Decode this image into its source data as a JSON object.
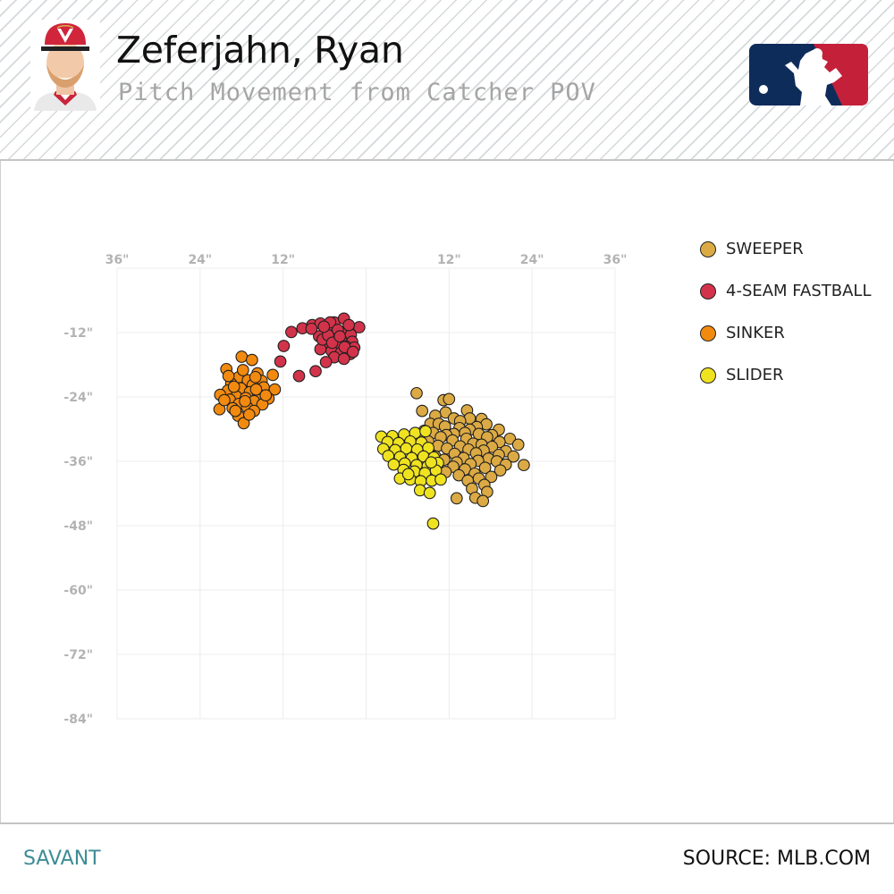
{
  "header": {
    "player_name": "Zeferjahn, Ryan",
    "subtitle": "Pitch Movement from Catcher POV"
  },
  "footer": {
    "left_label": "SAVANT",
    "right_label": "SOURCE: MLB.COM"
  },
  "colors": {
    "sweeper": "#dcaa44",
    "fourseam": "#d2334a",
    "sinker": "#f28a0f",
    "slider": "#efe320",
    "grid": "#ececec",
    "tick": "#b3b3b3",
    "brand_teal": "#3d8c95",
    "mlb_blue": "#0e2c5a",
    "mlb_red": "#c4203a"
  },
  "chart_data": {
    "type": "scatter",
    "xlabel": "",
    "ylabel": "",
    "xlim": [
      -36,
      36
    ],
    "ylim": [
      -84,
      0
    ],
    "x_ticks": [
      {
        "value": -36,
        "label": "36\""
      },
      {
        "value": -24,
        "label": "24\""
      },
      {
        "value": -12,
        "label": "12\""
      },
      {
        "value": 12,
        "label": "12\""
      },
      {
        "value": 24,
        "label": "24\""
      },
      {
        "value": 36,
        "label": "36\""
      }
    ],
    "y_ticks": [
      {
        "value": -12,
        "label": "-12\""
      },
      {
        "value": -24,
        "label": "-24\""
      },
      {
        "value": -36,
        "label": "-36\""
      },
      {
        "value": -48,
        "label": "-48\""
      },
      {
        "value": -60,
        "label": "-60\""
      },
      {
        "value": -72,
        "label": "-72\""
      },
      {
        "value": -84,
        "label": "-84\""
      }
    ],
    "grid": true,
    "legend_position": "top-right",
    "series": [
      {
        "name": "SWEEPER",
        "color": "#dcaa44",
        "points": [
          [
            7.3,
            -23.3
          ],
          [
            11.2,
            -24.6
          ],
          [
            12,
            -24.4
          ],
          [
            14.6,
            -26.5
          ],
          [
            8.1,
            -26.6
          ],
          [
            11.5,
            -26.9
          ],
          [
            10,
            -27.5
          ],
          [
            12.7,
            -28
          ],
          [
            15,
            -28
          ],
          [
            16.7,
            -28.1
          ],
          [
            13.6,
            -28.5
          ],
          [
            9.3,
            -29
          ],
          [
            10.5,
            -29
          ],
          [
            17.4,
            -29.1
          ],
          [
            11.4,
            -29.5
          ],
          [
            16,
            -29.6
          ],
          [
            13.5,
            -29.8
          ],
          [
            15,
            -30.1
          ],
          [
            19.2,
            -30.1
          ],
          [
            8.4,
            -30.3
          ],
          [
            9.7,
            -30.7
          ],
          [
            14.3,
            -30.7
          ],
          [
            12.7,
            -30.9
          ],
          [
            16.3,
            -30.9
          ],
          [
            11.6,
            -31.1
          ],
          [
            18.2,
            -31.1
          ],
          [
            7.6,
            -31.4
          ],
          [
            10.8,
            -31.5
          ],
          [
            17.5,
            -31.5
          ],
          [
            14.5,
            -31.8
          ],
          [
            20.8,
            -31.8
          ],
          [
            12.5,
            -32.1
          ],
          [
            9,
            -32.3
          ],
          [
            19.3,
            -32.4
          ],
          [
            15.5,
            -32.7
          ],
          [
            16.7,
            -32.9
          ],
          [
            22,
            -32.9
          ],
          [
            10.4,
            -33.1
          ],
          [
            13.6,
            -33.2
          ],
          [
            18.2,
            -33.3
          ],
          [
            11.7,
            -33.6
          ],
          [
            14.8,
            -33.8
          ],
          [
            8.2,
            -34
          ],
          [
            17,
            -34
          ],
          [
            20.2,
            -34.1
          ],
          [
            15.9,
            -34.5
          ],
          [
            12.8,
            -34.6
          ],
          [
            19.2,
            -34.8
          ],
          [
            10,
            -35.1
          ],
          [
            21.3,
            -35.1
          ],
          [
            14.1,
            -35.4
          ],
          [
            17.7,
            -35.5
          ],
          [
            11.3,
            -35.7
          ],
          [
            16.2,
            -35.9
          ],
          [
            18.9,
            -36
          ],
          [
            13.1,
            -36.2
          ],
          [
            15.1,
            -36.5
          ],
          [
            20.2,
            -36.6
          ],
          [
            22.8,
            -36.7
          ],
          [
            10.3,
            -36.8
          ],
          [
            12.6,
            -37
          ],
          [
            17.2,
            -37.2
          ],
          [
            14.3,
            -37.5
          ],
          [
            19.4,
            -37.7
          ],
          [
            11.5,
            -38
          ],
          [
            15.7,
            -38.3
          ],
          [
            13.4,
            -38.6
          ],
          [
            18.1,
            -38.9
          ],
          [
            16.3,
            -39.2
          ],
          [
            14.7,
            -39.6
          ],
          [
            17.1,
            -40.4
          ],
          [
            15.3,
            -41.1
          ],
          [
            17.5,
            -41.7
          ],
          [
            15.8,
            -42.8
          ],
          [
            13.1,
            -42.9
          ],
          [
            16.9,
            -43.4
          ]
        ]
      },
      {
        "name": "4-SEAM FASTBALL",
        "color": "#d2334a",
        "points": [
          [
            -12.4,
            -17.4
          ],
          [
            -11.9,
            -14.5
          ],
          [
            -10.8,
            -11.9
          ],
          [
            -9.2,
            -11.2
          ],
          [
            -7.8,
            -10.6
          ],
          [
            -6.6,
            -10.3
          ],
          [
            -4.6,
            -10.1
          ],
          [
            -3.2,
            -9.4
          ],
          [
            -1,
            -11
          ],
          [
            -5.4,
            -11.6
          ],
          [
            -3.4,
            -11.9
          ],
          [
            -2.2,
            -12.4
          ],
          [
            -6.8,
            -12.7
          ],
          [
            -4.8,
            -13.2
          ],
          [
            -3.6,
            -13.4
          ],
          [
            -2,
            -13.7
          ],
          [
            -5.8,
            -14
          ],
          [
            -4.4,
            -14.3
          ],
          [
            -2.9,
            -14.6
          ],
          [
            -1.7,
            -14.8
          ],
          [
            -6.6,
            -15.1
          ],
          [
            -5,
            -15.4
          ],
          [
            -3.6,
            -15.7
          ],
          [
            -2.3,
            -16
          ],
          [
            -4.6,
            -16.6
          ],
          [
            -3.2,
            -16.9
          ],
          [
            -5.8,
            -17.5
          ],
          [
            -9.7,
            -20.1
          ],
          [
            -7.3,
            -19.2
          ],
          [
            -5.2,
            -10.1
          ],
          [
            -4.1,
            -11.5
          ],
          [
            -7.9,
            -11.3
          ],
          [
            -2.5,
            -10.6
          ],
          [
            -6.3,
            -13.3
          ],
          [
            -5.5,
            -12.5
          ],
          [
            -3.1,
            -14.7
          ],
          [
            -1.9,
            -15.6
          ],
          [
            -4.9,
            -13.9
          ],
          [
            -6.1,
            -10.9
          ],
          [
            -3.8,
            -12.7
          ]
        ]
      },
      {
        "name": "SINKER",
        "color": "#f28a0f",
        "points": [
          [
            -18,
            -16.5
          ],
          [
            -16.5,
            -17.1
          ],
          [
            -20.2,
            -18.8
          ],
          [
            -15.7,
            -19.6
          ],
          [
            -13.5,
            -19.9
          ],
          [
            -18.4,
            -20.3
          ],
          [
            -17.1,
            -20.9
          ],
          [
            -15.1,
            -21
          ],
          [
            -19.5,
            -21.5
          ],
          [
            -16.4,
            -21.8
          ],
          [
            -14.8,
            -22.2
          ],
          [
            -18.1,
            -22.4
          ],
          [
            -13.2,
            -22.6
          ],
          [
            -20,
            -22.8
          ],
          [
            -16.8,
            -23.1
          ],
          [
            -15.6,
            -23.5
          ],
          [
            -21.1,
            -23.6
          ],
          [
            -18.8,
            -23.9
          ],
          [
            -17.4,
            -24.2
          ],
          [
            -14.1,
            -24.3
          ],
          [
            -19.7,
            -24.5
          ],
          [
            -16.2,
            -24.8
          ],
          [
            -18.4,
            -25.3
          ],
          [
            -15,
            -25.4
          ],
          [
            -17.2,
            -25.9
          ],
          [
            -19.3,
            -26.1
          ],
          [
            -21.2,
            -26.3
          ],
          [
            -16.2,
            -26.6
          ],
          [
            -18.5,
            -27.5
          ],
          [
            -17.7,
            -28.9
          ],
          [
            -19.9,
            -20.1
          ],
          [
            -17.8,
            -19
          ],
          [
            -15.9,
            -22.6
          ],
          [
            -18.9,
            -26.6
          ],
          [
            -20.5,
            -24.6
          ],
          [
            -16.9,
            -27.3
          ],
          [
            -14.5,
            -23.7
          ],
          [
            -19.1,
            -22.1
          ],
          [
            -17.5,
            -24.8
          ],
          [
            -16,
            -20.3
          ]
        ]
      },
      {
        "name": "SLIDER",
        "color": "#efe320",
        "points": [
          [
            2.2,
            -31.4
          ],
          [
            3.8,
            -31.3
          ],
          [
            5.5,
            -31
          ],
          [
            7.1,
            -30.7
          ],
          [
            8.6,
            -30.4
          ],
          [
            3.1,
            -32.4
          ],
          [
            4.7,
            -32.6
          ],
          [
            6.4,
            -32.3
          ],
          [
            8,
            -32.5
          ],
          [
            2.5,
            -33.7
          ],
          [
            4.2,
            -33.9
          ],
          [
            5.8,
            -33.6
          ],
          [
            7.4,
            -33.8
          ],
          [
            9,
            -33.5
          ],
          [
            3.2,
            -35
          ],
          [
            4.9,
            -35.2
          ],
          [
            6.6,
            -35.4
          ],
          [
            8.3,
            -35.1
          ],
          [
            9.8,
            -35.3
          ],
          [
            4,
            -36.6
          ],
          [
            5.6,
            -36.4
          ],
          [
            7.3,
            -36.7
          ],
          [
            8.9,
            -36.9
          ],
          [
            10.4,
            -36.3
          ],
          [
            5.4,
            -37.6
          ],
          [
            7,
            -37.9
          ],
          [
            8.5,
            -38.2
          ],
          [
            10.1,
            -37.7
          ],
          [
            4.9,
            -39.2
          ],
          [
            6.4,
            -39.4
          ],
          [
            7.9,
            -39.7
          ],
          [
            9.5,
            -39.6
          ],
          [
            10.8,
            -39.4
          ],
          [
            7.8,
            -41.4
          ],
          [
            9.2,
            -41.9
          ],
          [
            9.7,
            -47.6
          ],
          [
            6.1,
            -38.4
          ],
          [
            9.4,
            -36.2
          ]
        ]
      }
    ]
  }
}
